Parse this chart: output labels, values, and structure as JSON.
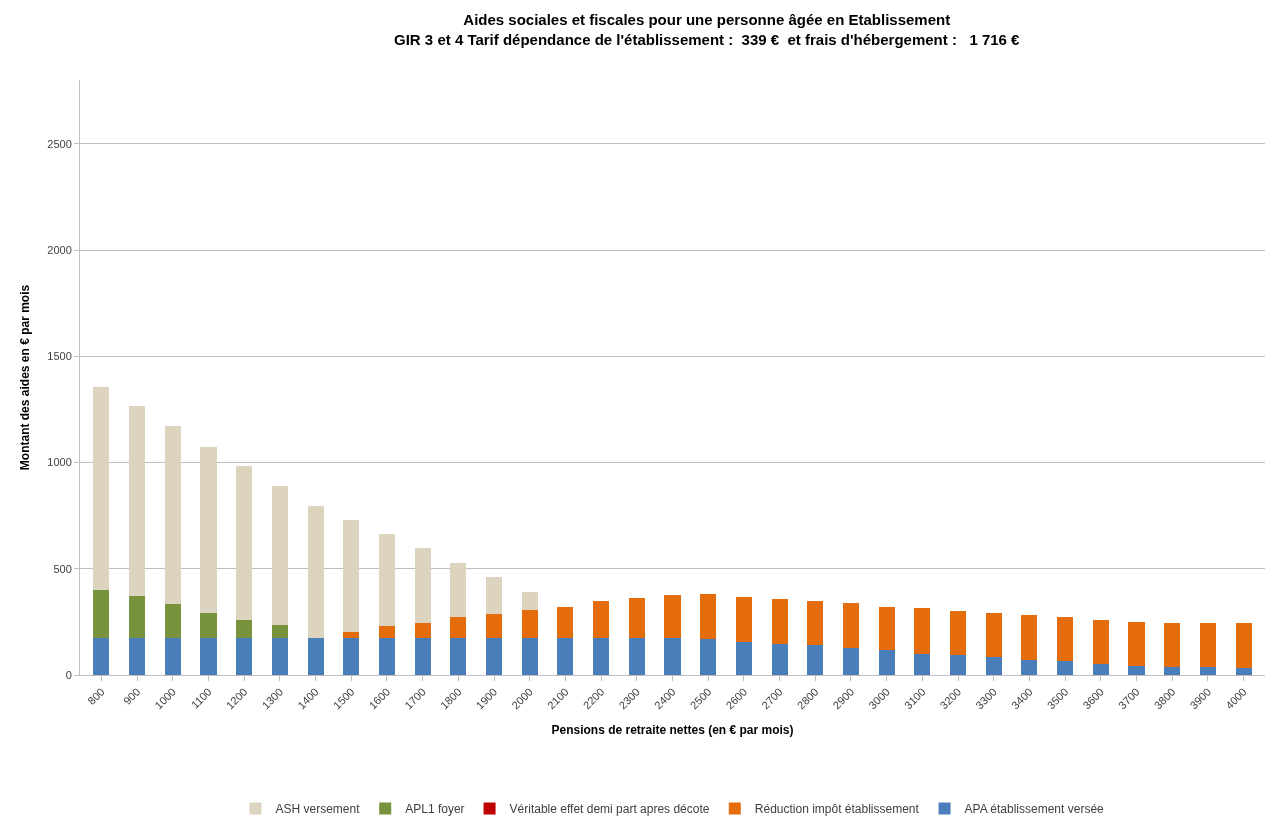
{
  "chart_data": {
    "type": "bar",
    "stacked": true,
    "title": "Aides sociales et fiscales pour une personne âgée en Etablissement",
    "subtitle": "GIR 3 et 4 Tarif dépendance de l'établissement :  339 €  et frais d'hébergement :   1 716 €",
    "xlabel": "Pensions de retraite nettes (en € par mois)",
    "ylabel": "Montant des aides en € par mois",
    "categories": [
      "800",
      "900",
      "1000",
      "1100",
      "1200",
      "1300",
      "1400",
      "1500",
      "1600",
      "1700",
      "1800",
      "1900",
      "2000",
      "2100",
      "2200",
      "2300",
      "2400",
      "2500",
      "2600",
      "2700",
      "2800",
      "2900",
      "3000",
      "3100",
      "3200",
      "3300",
      "3400",
      "3500",
      "3600",
      "3700",
      "3800",
      "3900",
      "4000"
    ],
    "series": [
      {
        "name": "APA établissement versée",
        "color": "#4a7ebb",
        "values": [
          175,
          175,
          175,
          175,
          175,
          175,
          175,
          175,
          175,
          175,
          175,
          175,
          175,
          175,
          175,
          175,
          175,
          170,
          157,
          146,
          139,
          125,
          118,
          101,
          93,
          83,
          72,
          67,
          53,
          44,
          39,
          39,
          35
        ]
      },
      {
        "name": "Réduction impôt établissement",
        "color": "#e46c0a",
        "values": [
          0,
          0,
          0,
          0,
          0,
          0,
          0,
          26,
          54,
          72,
          96,
          112,
          133,
          147,
          172,
          186,
          200,
          209,
          211,
          212,
          208,
          212,
          204,
          212,
          208,
          209,
          209,
          204,
          208,
          206,
          204,
          204,
          208
        ]
      },
      {
        "name": "Véritable effet demi part apres décote",
        "color": "#c00000",
        "values": [
          0,
          0,
          0,
          0,
          0,
          0,
          0,
          0,
          0,
          0,
          0,
          0,
          0,
          0,
          0,
          0,
          0,
          0,
          0,
          0,
          0,
          0,
          0,
          0,
          0,
          0,
          0,
          0,
          0,
          0,
          0,
          0,
          0
        ]
      },
      {
        "name": "APL1 foyer",
        "color": "#77933c",
        "values": [
          224,
          197,
          161,
          119,
          85,
          58,
          0,
          0,
          0,
          0,
          0,
          0,
          0,
          0,
          0,
          0,
          0,
          0,
          0,
          0,
          0,
          0,
          0,
          0,
          0,
          0,
          0,
          0,
          0,
          0,
          0,
          0,
          0
        ]
      },
      {
        "name": "ASH versement",
        "color": "#ddd4c0",
        "values": [
          958,
          895,
          836,
          780,
          722,
          656,
          621,
          530,
          434,
          350,
          257,
          174,
          81,
          0,
          0,
          0,
          0,
          0,
          0,
          0,
          0,
          0,
          0,
          0,
          0,
          0,
          0,
          0,
          0,
          0,
          0,
          0,
          0
        ]
      }
    ],
    "ylim": [
      0,
      2800
    ],
    "yticks": [
      0,
      500,
      1000,
      1500,
      2000,
      2500
    ],
    "grid": "y",
    "legend": "bottom"
  }
}
